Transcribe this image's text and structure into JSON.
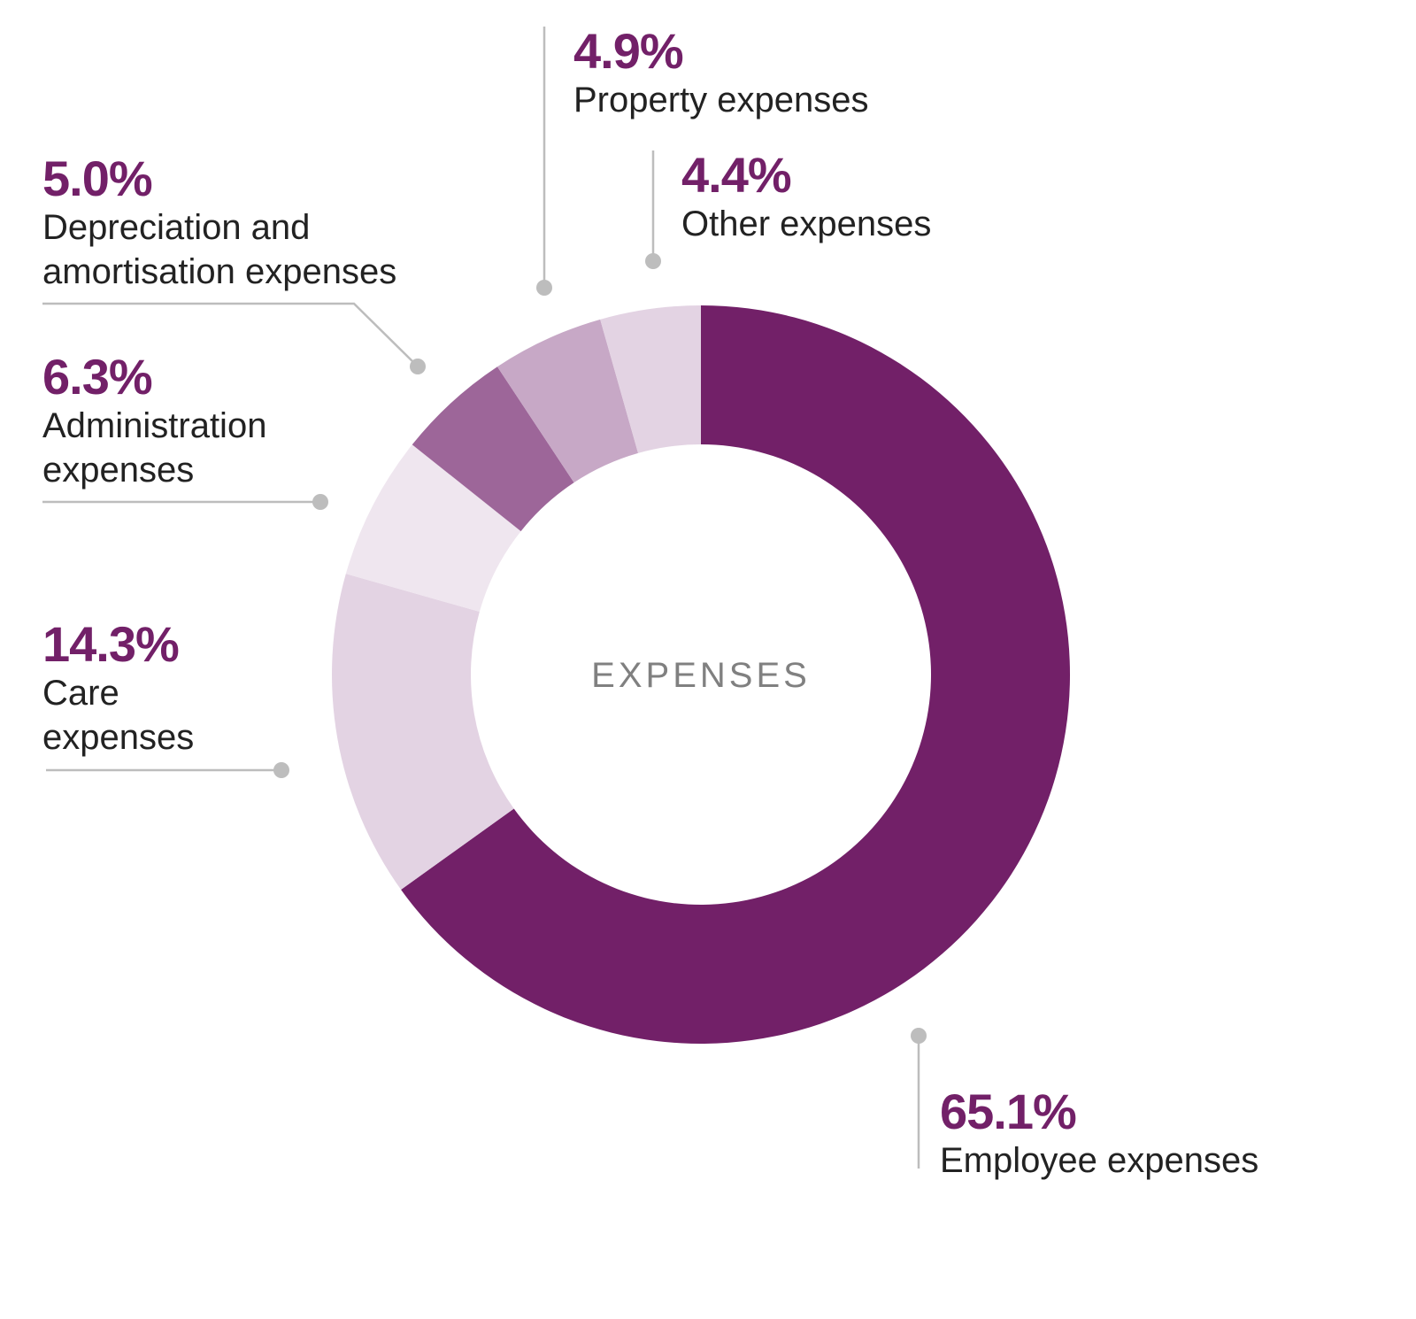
{
  "chart_data": {
    "type": "donut",
    "center_label": "EXPENSES",
    "categories": [
      "Employee expenses",
      "Care expenses",
      "Administration expenses",
      "Depreciation and amortisation expenses",
      "Property expenses",
      "Other expenses"
    ],
    "values": [
      65.1,
      14.3,
      6.3,
      5.0,
      4.9,
      4.4
    ],
    "value_labels": [
      "65.1%",
      "14.3%",
      "6.3%",
      "5.0%",
      "4.9%",
      "4.4%"
    ],
    "colors": [
      "#722068",
      "#e3d3e3",
      "#efe6ef",
      "#9d6699",
      "#c7a8c6",
      "#e3d3e3"
    ]
  }
}
